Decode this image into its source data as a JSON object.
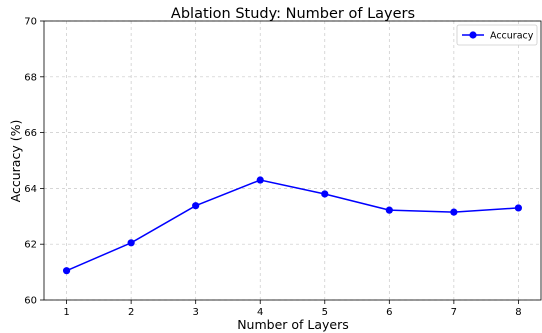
{
  "chart_data": {
    "type": "line",
    "title": "Ablation Study: Number of Layers",
    "xlabel": "Number of Layers",
    "ylabel": "Accuracy (%)",
    "x": [
      1,
      2,
      3,
      4,
      5,
      6,
      7,
      8
    ],
    "xlim": [
      0.65,
      8.35
    ],
    "ylim": [
      60,
      70
    ],
    "xticks": [
      "1",
      "2",
      "3",
      "4",
      "5",
      "6",
      "7",
      "8"
    ],
    "yticks": [
      "60",
      "62",
      "64",
      "66",
      "68",
      "70"
    ],
    "grid": true,
    "legend_position": "upper right",
    "series": [
      {
        "name": "Accuracy",
        "color": "#0000ff",
        "marker": "circle",
        "values": [
          61.05,
          62.05,
          63.38,
          64.3,
          63.8,
          63.22,
          63.15,
          63.3
        ]
      }
    ]
  }
}
